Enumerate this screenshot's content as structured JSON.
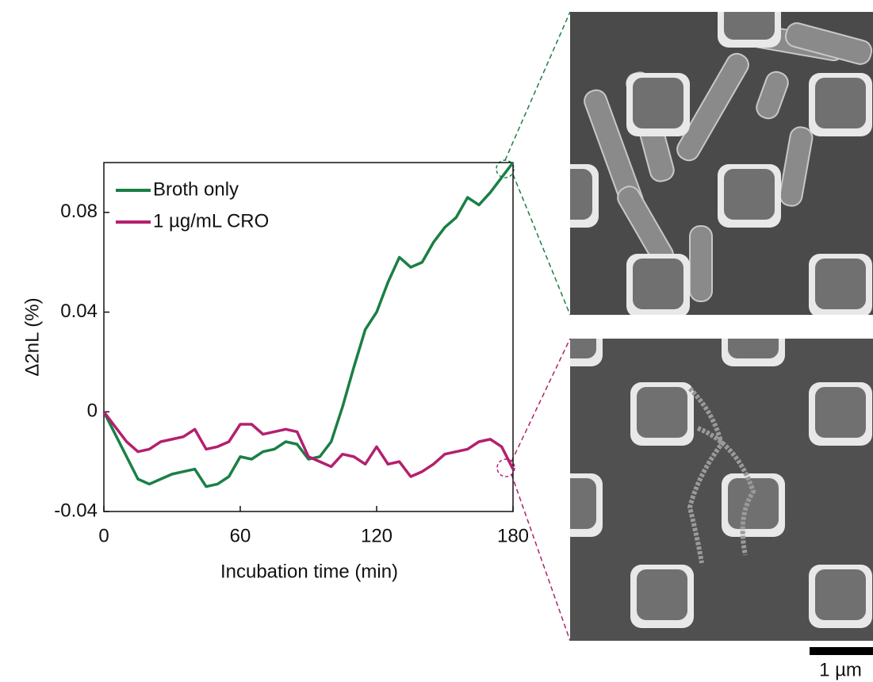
{
  "chart_data": {
    "type": "line",
    "xlabel": "Incubation time (min)",
    "ylabel": "Δ2nL (%)",
    "x": [
      0,
      5,
      10,
      15,
      20,
      25,
      30,
      35,
      40,
      45,
      50,
      55,
      60,
      65,
      70,
      75,
      80,
      85,
      90,
      95,
      100,
      105,
      110,
      115,
      120,
      125,
      130,
      135,
      140,
      145,
      150,
      155,
      160,
      165,
      170,
      175,
      180
    ],
    "series": [
      {
        "name": "Broth only",
        "color": "#1b7f46",
        "values": [
          0,
          -0.009,
          -0.018,
          -0.027,
          -0.029,
          -0.027,
          -0.025,
          -0.024,
          -0.023,
          -0.03,
          -0.029,
          -0.026,
          -0.018,
          -0.019,
          -0.016,
          -0.015,
          -0.012,
          -0.013,
          -0.019,
          -0.018,
          -0.012,
          0.002,
          0.018,
          0.033,
          0.04,
          0.052,
          0.062,
          0.058,
          0.06,
          0.068,
          0.074,
          0.078,
          0.086,
          0.083,
          0.088,
          0.094,
          0.1
        ]
      },
      {
        "name": "1 µg/mL CRO",
        "color": "#b3206f",
        "values": [
          0,
          -0.006,
          -0.012,
          -0.016,
          -0.015,
          -0.012,
          -0.011,
          -0.01,
          -0.007,
          -0.015,
          -0.014,
          -0.012,
          -0.005,
          -0.005,
          -0.009,
          -0.008,
          -0.007,
          -0.008,
          -0.018,
          -0.02,
          -0.022,
          -0.017,
          -0.018,
          -0.021,
          -0.014,
          -0.021,
          -0.02,
          -0.026,
          -0.024,
          -0.021,
          -0.017,
          -0.016,
          -0.015,
          -0.012,
          -0.011,
          -0.014,
          -0.023
        ]
      }
    ],
    "xlim": [
      0,
      180
    ],
    "xticks": [
      0,
      60,
      120,
      180
    ],
    "ylim": [
      -0.04,
      0.1
    ],
    "yticks": [
      -0.04,
      0,
      0.04,
      0.08
    ],
    "legend": "upper left"
  },
  "scale_bar_label": "1 µm"
}
